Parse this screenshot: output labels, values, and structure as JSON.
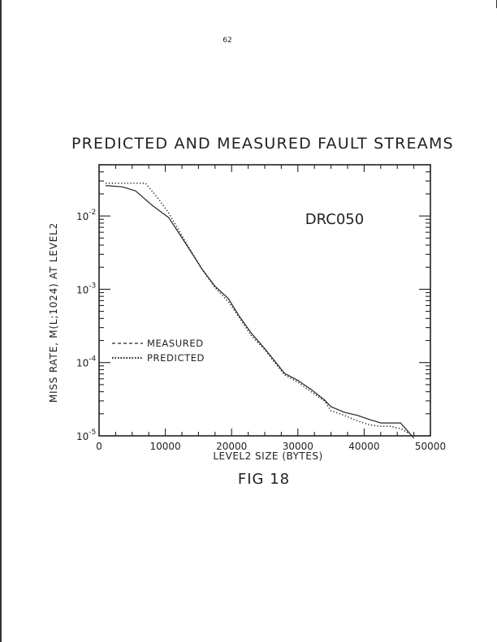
{
  "page": {
    "number": "62",
    "caption": "FIG 18"
  },
  "chart_data": {
    "type": "line",
    "title": "PREDICTED AND MEASURED FAULT STREAMS",
    "annotation": "DRC050",
    "xlabel": "LEVEL2 SIZE (BYTES)",
    "ylabel": "MISS RATE, M(L;1024) AT LEVEL2",
    "xlim": [
      0,
      50000
    ],
    "ylim": [
      1e-05,
      0.05
    ],
    "yscale": "log",
    "x_ticks": [
      0,
      10000,
      20000,
      30000,
      40000,
      50000
    ],
    "x_tick_labels": [
      "0",
      "10000",
      "20000",
      "30000",
      "40000",
      "50000"
    ],
    "y_ticks": [
      1e-05,
      0.0001,
      0.001,
      0.01
    ],
    "y_tick_base": [
      "10",
      "10",
      "10",
      "10"
    ],
    "y_tick_exp": [
      "-5",
      "-4",
      "-3",
      "-2"
    ],
    "grid": false,
    "legend_position": "lower-left",
    "series": [
      {
        "name": "MEASURED",
        "style": "dashed",
        "x": [
          1000,
          3500,
          5500,
          8000,
          10500,
          13000,
          15500,
          17500,
          19500,
          21000,
          23000,
          25000,
          26500,
          28000,
          30000,
          32000,
          34000,
          35000,
          37000,
          39000,
          41000,
          42500,
          44000,
          45500,
          46800,
          47500
        ],
        "y": [
          0.026,
          0.025,
          0.022,
          0.014,
          0.0095,
          0.0043,
          0.0019,
          0.0011,
          0.00075,
          0.00045,
          0.00025,
          0.000155,
          0.000105,
          7.1e-05,
          5.7e-05,
          4.3e-05,
          3.1e-05,
          2.5e-05,
          2.1e-05,
          1.9e-05,
          1.65e-05,
          1.5e-05,
          1.5e-05,
          1.5e-05,
          1.1e-05,
          9.3e-06
        ]
      },
      {
        "name": "PREDICTED",
        "style": "dotted",
        "x": [
          1000,
          3500,
          6000,
          7000,
          9000,
          10500,
          13000,
          15500,
          17500,
          19500,
          21000,
          23000,
          25000,
          26500,
          28000,
          30000,
          32000,
          34000,
          35000,
          37000,
          39000,
          41000,
          42500,
          44000,
          45500,
          46800
        ],
        "y": [
          0.028,
          0.028,
          0.028,
          0.028,
          0.017,
          0.011,
          0.0045,
          0.0019,
          0.00105,
          0.00068,
          0.00043,
          0.00023,
          0.00015,
          0.0001,
          6.8e-05,
          5.4e-05,
          4e-05,
          3e-05,
          2.2e-05,
          1.9e-05,
          1.6e-05,
          1.4e-05,
          1.35e-05,
          1.35e-05,
          1.25e-05,
          1.08e-05
        ]
      }
    ]
  }
}
